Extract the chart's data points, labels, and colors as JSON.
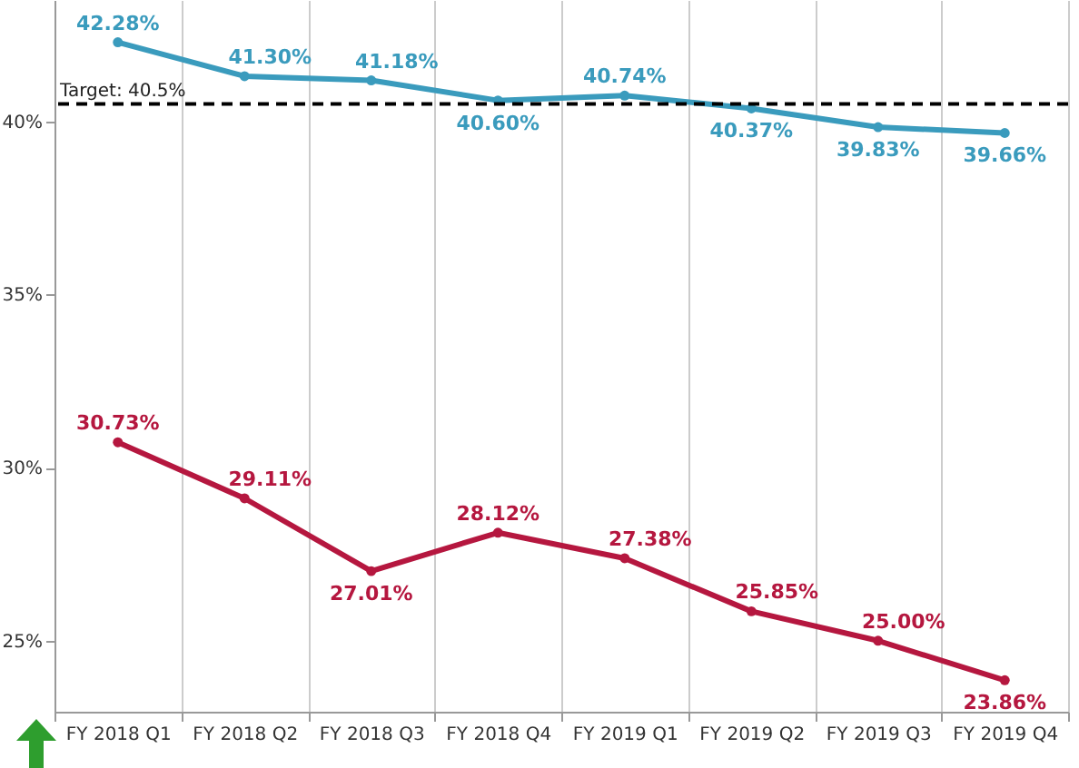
{
  "chart_data": {
    "type": "line",
    "categories": [
      "FY 2018 Q1",
      "FY 2018 Q2",
      "FY 2018 Q3",
      "FY 2018 Q4",
      "FY 2019 Q1",
      "FY 2019 Q2",
      "FY 2019 Q3",
      "FY 2019 Q4"
    ],
    "series": [
      {
        "color": "#3a9bbd",
        "values": [
          42.28,
          41.3,
          41.18,
          40.6,
          40.74,
          40.37,
          39.83,
          39.66
        ],
        "value_labels": [
          "42.28%",
          "41.30%",
          "41.18%",
          "40.60%",
          "40.74%",
          "40.37%",
          "39.83%",
          "39.66%"
        ]
      },
      {
        "color": "#b5173f",
        "values": [
          30.73,
          29.11,
          27.01,
          28.12,
          27.38,
          25.85,
          25.0,
          23.86
        ],
        "value_labels": [
          "30.73%",
          "29.11%",
          "27.01%",
          "28.12%",
          "27.38%",
          "25.85%",
          "25.00%",
          "23.86%"
        ]
      }
    ],
    "ylim": [
      22.95,
      43.5
    ],
    "yticks": [
      {
        "value": 25,
        "label": "25%"
      },
      {
        "value": 30,
        "label": "30%"
      },
      {
        "value": 35,
        "label": "35%"
      },
      {
        "value": 40,
        "label": "40%"
      }
    ],
    "ref_lines": [
      {
        "axis": "y",
        "value": 40.5,
        "label": "Target: 40.5%",
        "color": "#000000",
        "line_style": "dashed"
      }
    ],
    "grid": "x",
    "marker": "circle",
    "line_style": "solid"
  }
}
